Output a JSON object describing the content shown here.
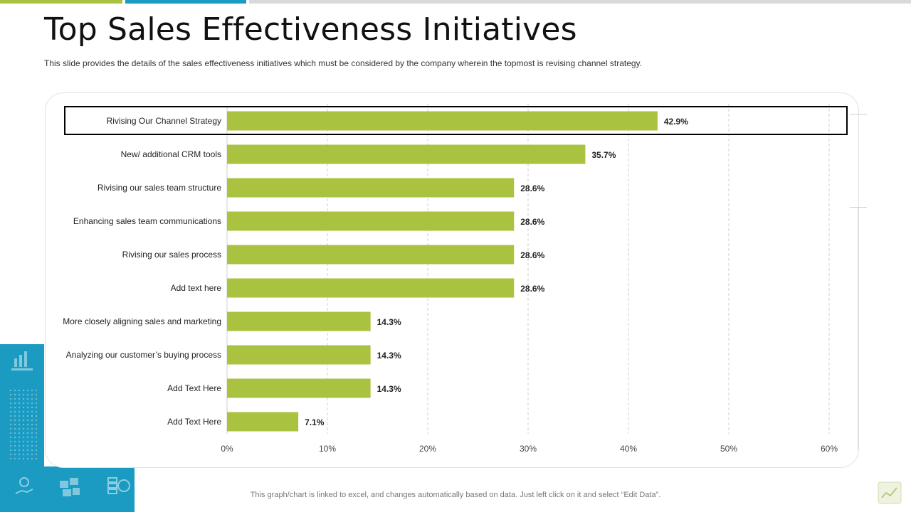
{
  "slide": {
    "title": "Top Sales Effectiveness Initiatives",
    "subtitle": "This slide provides  the details of the sales effectiveness  initiatives which must be considered by the company wherein  the topmost is revising  channel strategy.",
    "footer_note": "This graph/chart is linked to excel,  and changes automatically based on data. Just left click on it and select “Edit Data”."
  },
  "colors": {
    "bar": "#a9c23f",
    "accent_blue": "#1b9bc2",
    "highlight_border": "#000000"
  },
  "icons": {
    "side": [
      "growth-chart-icon",
      "idea-hand-icon",
      "puzzle-icon",
      "coins-icon"
    ],
    "corner": "excel-chart-icon"
  },
  "chart_data": {
    "type": "bar",
    "orientation": "horizontal",
    "categories": [
      "Rivising Our Channel Strategy",
      "New/ additional CRM tools",
      "Rivising our sales team structure",
      "Enhancing sales team communications",
      "Rivising our sales process",
      "Add text here",
      "More closely aligning sales and marketing",
      "Analyzing our customer’s buying process",
      "Add Text Here",
      "Add Text Here"
    ],
    "values": [
      42.9,
      35.7,
      28.6,
      28.6,
      28.6,
      28.6,
      14.3,
      14.3,
      14.3,
      7.1
    ],
    "value_labels": [
      "42.9%",
      "35.7%",
      "28.6%",
      "28.6%",
      "28.6%",
      "28.6%",
      "14.3%",
      "14.3%",
      "14.3%",
      "7.1%"
    ],
    "xlim": [
      0,
      60
    ],
    "x_ticks": [
      "0%",
      "10%",
      "20%",
      "30%",
      "40%",
      "50%",
      "60%"
    ],
    "grid": "vertical dashed",
    "highlighted_category_index": 0
  }
}
